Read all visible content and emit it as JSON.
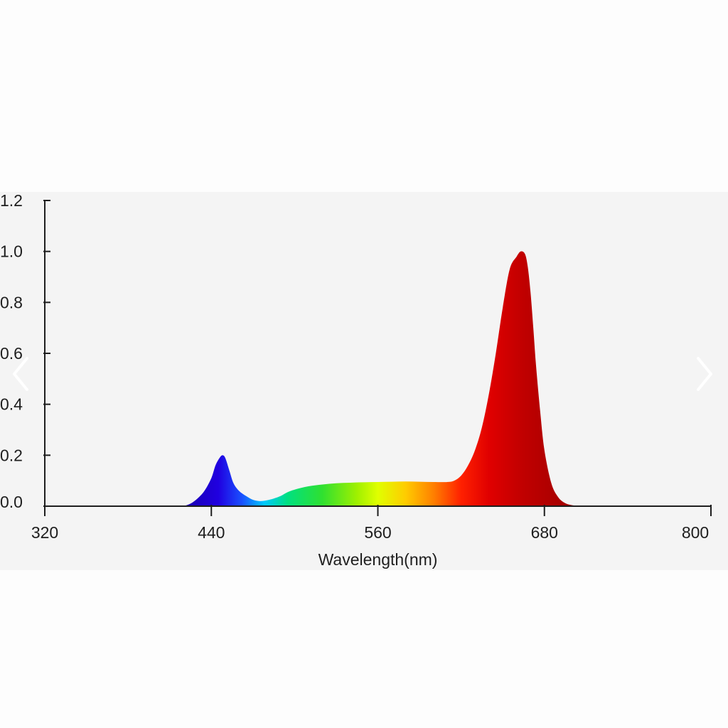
{
  "chart_data": {
    "type": "area",
    "title": "",
    "xlabel": "Wavelength(nm)",
    "ylabel": "",
    "xlim": [
      320,
      800
    ],
    "ylim": [
      0,
      1.2
    ],
    "x_ticks": [
      320,
      440,
      560,
      680,
      800
    ],
    "x_tick_labels": [
      "320",
      "440",
      "560",
      "680",
      "800"
    ],
    "y_ticks": [
      0,
      0.2,
      0.4,
      0.6,
      0.8,
      1.0,
      1.2
    ],
    "y_tick_labels": [
      "0.0",
      "0.2",
      "0.4",
      "0.6",
      "0.8",
      "1.0",
      "1.2"
    ],
    "grid": false,
    "legend": "none",
    "fill": "wavelength-spectrum gradient",
    "series": [
      {
        "x": [
          420,
          425,
          430,
          435,
          440,
          443,
          446,
          448,
          450,
          453,
          456,
          460,
          465,
          470,
          475,
          480,
          485,
          490,
          495,
          500,
          510,
          520,
          530,
          540,
          550,
          560,
          570,
          580,
          590,
          600,
          610,
          615,
          620,
          625,
          630,
          635,
          640,
          645,
          650,
          655,
          660,
          663,
          666,
          668,
          670,
          672,
          674,
          677,
          680,
          685,
          690,
          695,
          700,
          705,
          710
        ],
        "y": [
          0.0,
          0.01,
          0.03,
          0.06,
          0.11,
          0.16,
          0.19,
          0.2,
          0.19,
          0.14,
          0.09,
          0.06,
          0.04,
          0.025,
          0.02,
          0.023,
          0.03,
          0.04,
          0.055,
          0.065,
          0.078,
          0.085,
          0.09,
          0.092,
          0.094,
          0.095,
          0.096,
          0.097,
          0.096,
          0.095,
          0.095,
          0.1,
          0.12,
          0.16,
          0.22,
          0.31,
          0.44,
          0.6,
          0.78,
          0.93,
          0.98,
          1.0,
          0.99,
          0.94,
          0.84,
          0.7,
          0.55,
          0.37,
          0.22,
          0.09,
          0.035,
          0.012,
          0.004,
          0.001,
          0.0
        ]
      }
    ],
    "spectrum_colors": [
      {
        "wavelength": 420,
        "color": "#1a00b0"
      },
      {
        "wavelength": 445,
        "color": "#2000e0"
      },
      {
        "wavelength": 462,
        "color": "#1a50ff"
      },
      {
        "wavelength": 478,
        "color": "#00c8ff"
      },
      {
        "wavelength": 495,
        "color": "#00e080"
      },
      {
        "wavelength": 520,
        "color": "#30e030"
      },
      {
        "wavelength": 545,
        "color": "#a0f000"
      },
      {
        "wavelength": 560,
        "color": "#e0ff00"
      },
      {
        "wavelength": 580,
        "color": "#ffcc00"
      },
      {
        "wavelength": 600,
        "color": "#ff8000"
      },
      {
        "wavelength": 620,
        "color": "#ff2000"
      },
      {
        "wavelength": 640,
        "color": "#e00000"
      },
      {
        "wavelength": 665,
        "color": "#c00000"
      },
      {
        "wavelength": 710,
        "color": "#9a0000"
      }
    ]
  },
  "colors": {
    "panel_background": "#f4f4f4",
    "page_background": "#fdfdfd",
    "axis": "#1e1e1e",
    "nav_arrow": "#ffffff"
  },
  "nav": {
    "prev_icon": "chevron-left-icon",
    "next_icon": "chevron-right-icon"
  }
}
